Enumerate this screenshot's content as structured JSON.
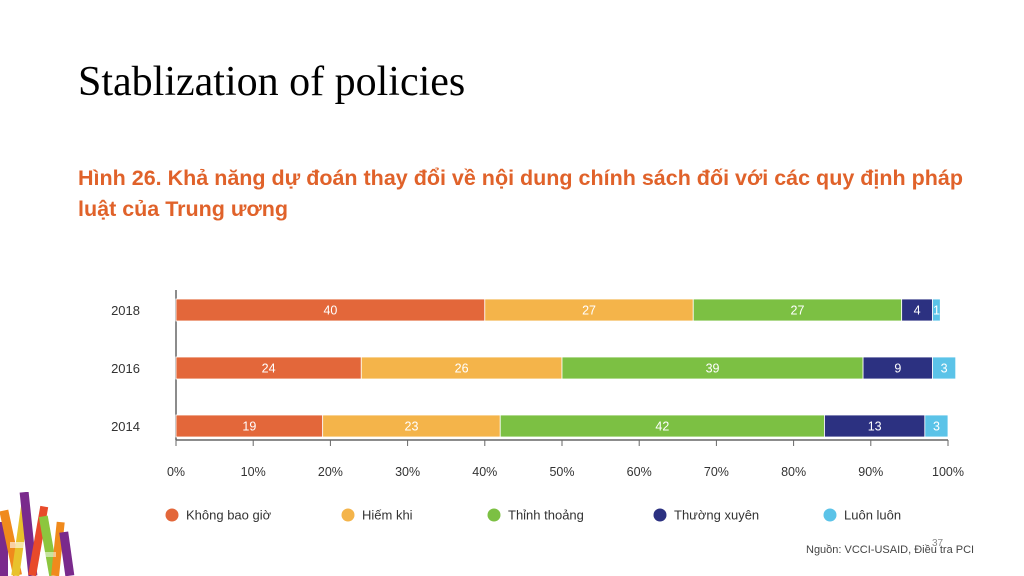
{
  "slide": {
    "title": "Stablization of policies",
    "page_number": "37"
  },
  "figure": {
    "title": "Hình 26. Khả năng dự đoán thay đổi về nội dung chính sách đối với các quy định pháp luật của Trung ương",
    "source": "Nguồn: VCCI-USAID, Điều tra PCI"
  },
  "chart_data": {
    "type": "bar",
    "orientation": "horizontal",
    "stacked": true,
    "categories": [
      "2018",
      "2016",
      "2014"
    ],
    "series": [
      {
        "name": "Không bao giờ",
        "color": "#e3673a",
        "values": [
          40,
          24,
          19
        ]
      },
      {
        "name": "Hiếm khi",
        "color": "#f4b44a",
        "values": [
          27,
          26,
          23
        ]
      },
      {
        "name": "Thỉnh thoảng",
        "color": "#7cc043",
        "values": [
          27,
          39,
          42
        ]
      },
      {
        "name": "Thường xuyên",
        "color": "#2c3181",
        "values": [
          4,
          9,
          13
        ]
      },
      {
        "name": "Luôn luôn",
        "color": "#5bc3e8",
        "values": [
          1,
          3,
          3
        ]
      }
    ],
    "xlim": [
      0,
      100
    ],
    "xticks": [
      "0%",
      "10%",
      "20%",
      "30%",
      "40%",
      "50%",
      "60%",
      "70%",
      "80%",
      "90%",
      "100%"
    ],
    "legend_position": "bottom"
  }
}
